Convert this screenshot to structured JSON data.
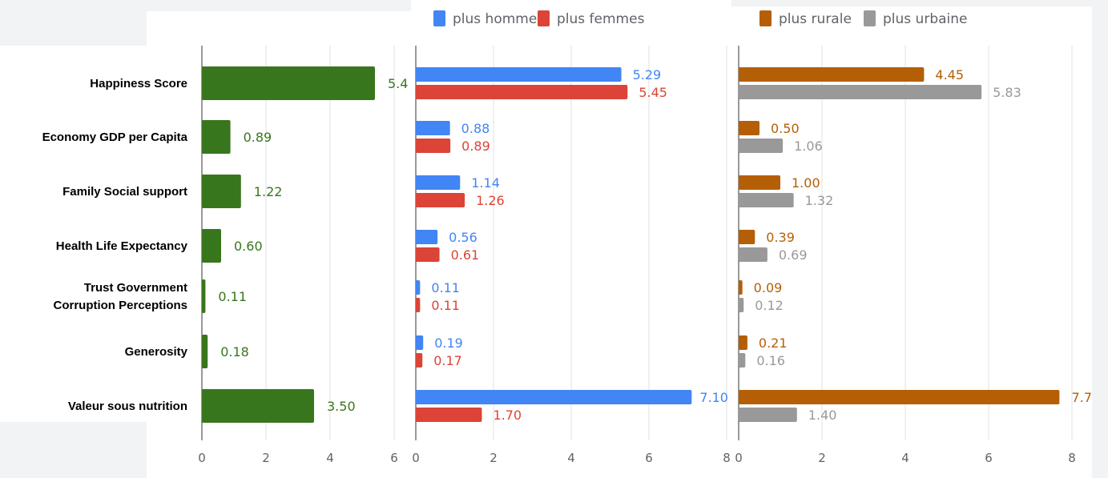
{
  "chart_data": [
    {
      "type": "bar",
      "orientation": "horizontal",
      "categories": [
        "Happiness Score",
        "Economy GDP per Capita",
        "Family Social support",
        "Health Life Expectancy",
        "Trust Government Corruption Perceptions",
        "Generosity",
        "Valeur sous nutrition"
      ],
      "category_lines": [
        [
          "Happiness Score"
        ],
        [
          "Economy GDP per Capita"
        ],
        [
          "Family Social support"
        ],
        [
          "Health Life Expectancy"
        ],
        [
          "Trust Government",
          "Corruption Perceptions"
        ],
        [
          "Generosity"
        ],
        [
          "Valeur sous nutrition"
        ]
      ],
      "series": [
        {
          "color": "#38761d",
          "values": [
            5.4,
            0.89,
            1.22,
            0.6,
            0.11,
            0.18,
            3.5
          ],
          "labels": [
            "5.4",
            "0.89",
            "1.22",
            "0.60",
            "0.11",
            "0.18",
            "3.50"
          ]
        }
      ],
      "xlim": [
        0,
        6
      ],
      "ticks": [
        "0",
        "2",
        "4",
        "6"
      ],
      "grid": true,
      "title": "",
      "xlabel": "",
      "ylabel": ""
    },
    {
      "type": "bar",
      "orientation": "horizontal",
      "categories": [
        "Happiness Score",
        "Economy GDP per Capita",
        "Family Social support",
        "Health Life Expectancy",
        "Trust Government Corruption Perceptions",
        "Generosity",
        "Valeur sous nutrition"
      ],
      "series": [
        {
          "name": "plus hommes",
          "color": "#4285f4",
          "values": [
            5.29,
            0.88,
            1.14,
            0.56,
            0.11,
            0.19,
            7.1
          ],
          "labels": [
            "5.29",
            "0.88",
            "1.14",
            "0.56",
            "0.11",
            "0.19",
            "7.10"
          ]
        },
        {
          "name": "plus femmes",
          "color": "#db4437",
          "values": [
            5.45,
            0.89,
            1.26,
            0.61,
            0.11,
            0.17,
            1.7
          ],
          "labels": [
            "5.45",
            "0.89",
            "1.26",
            "0.61",
            "0.11",
            "0.17",
            "1.70"
          ]
        }
      ],
      "xlim": [
        0,
        8
      ],
      "ticks": [
        "0",
        "2",
        "4",
        "6",
        "8"
      ],
      "grid": true,
      "legend": "top",
      "title": "",
      "xlabel": "",
      "ylabel": ""
    },
    {
      "type": "bar",
      "orientation": "horizontal",
      "categories": [
        "Happiness Score",
        "Economy GDP per Capita",
        "Family Social support",
        "Health Life Expectancy",
        "Trust Government Corruption Perceptions",
        "Generosity",
        "Valeur sous nutrition"
      ],
      "series": [
        {
          "name": "plus rurale",
          "color": "#b45f06",
          "values": [
            4.45,
            0.5,
            1.0,
            0.39,
            0.09,
            0.21,
            7.7
          ],
          "labels": [
            "4.45",
            "0.50",
            "1.00",
            "0.39",
            "0.09",
            "0.21",
            "7.7"
          ]
        },
        {
          "name": "plus urbaine",
          "color": "#999999",
          "values": [
            5.83,
            1.06,
            1.32,
            0.69,
            0.12,
            0.16,
            1.4
          ],
          "labels": [
            "5.83",
            "1.06",
            "1.32",
            "0.69",
            "0.12",
            "0.16",
            "1.40"
          ]
        }
      ],
      "xlim": [
        0,
        8
      ],
      "ticks": [
        "0",
        "2",
        "4",
        "6",
        "8"
      ],
      "grid": true,
      "legend": "top",
      "title": "",
      "xlabel": "",
      "ylabel": ""
    }
  ]
}
